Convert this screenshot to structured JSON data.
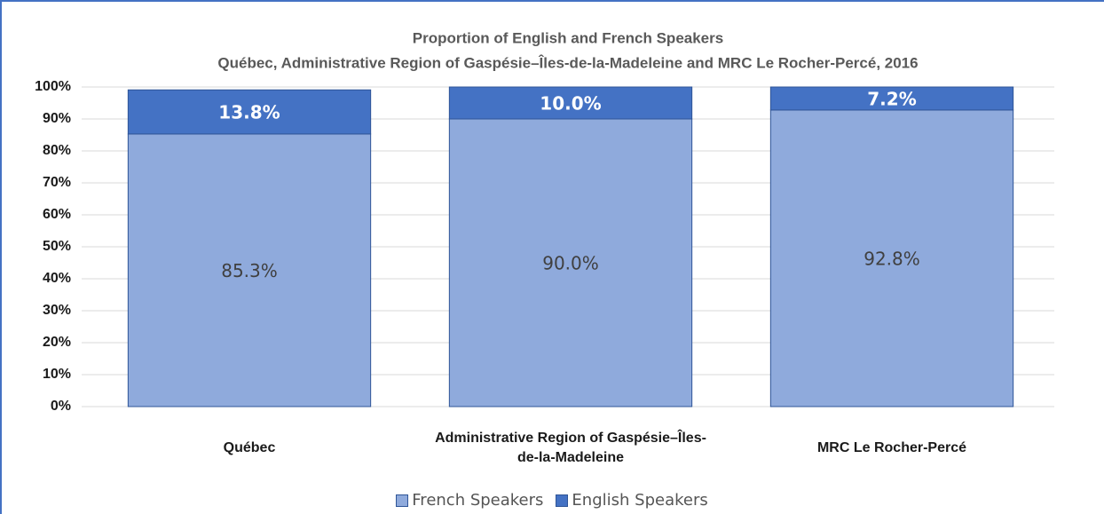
{
  "chart_data": {
    "type": "stacked_bar",
    "title": "Proportion of English and French Speakers",
    "subtitle": "Québec, Administrative Region of Gaspésie–Îles-de-la-Madeleine and MRC Le Rocher-Percé, 2016",
    "categories": [
      "Québec",
      "Administrative Region of Gaspésie–Îles-de-la-Madeleine",
      "MRC Le Rocher-Percé"
    ],
    "series": [
      {
        "name": "French Speakers",
        "color": "#8faadc",
        "values": [
          85.3,
          90.0,
          92.8
        ],
        "value_labels": [
          "85.3%",
          "90.0%",
          "92.8%"
        ]
      },
      {
        "name": "English Speakers",
        "color": "#4472c4",
        "values": [
          13.8,
          10.0,
          7.2
        ],
        "value_labels": [
          "13.8%",
          "10.0%",
          "7.2%"
        ]
      }
    ],
    "ylim": [
      0,
      100
    ],
    "yticks": [
      {
        "value": 0,
        "label": "0%"
      },
      {
        "value": 10,
        "label": "10%"
      },
      {
        "value": 20,
        "label": "20%"
      },
      {
        "value": 30,
        "label": "30%"
      },
      {
        "value": 40,
        "label": "40%"
      },
      {
        "value": 50,
        "label": "50%"
      },
      {
        "value": 60,
        "label": "60%"
      },
      {
        "value": 70,
        "label": "70%"
      },
      {
        "value": 80,
        "label": "80%"
      },
      {
        "value": 90,
        "label": "90%"
      },
      {
        "value": 100,
        "label": "100%"
      }
    ],
    "grid": true,
    "legend": "bottom"
  }
}
